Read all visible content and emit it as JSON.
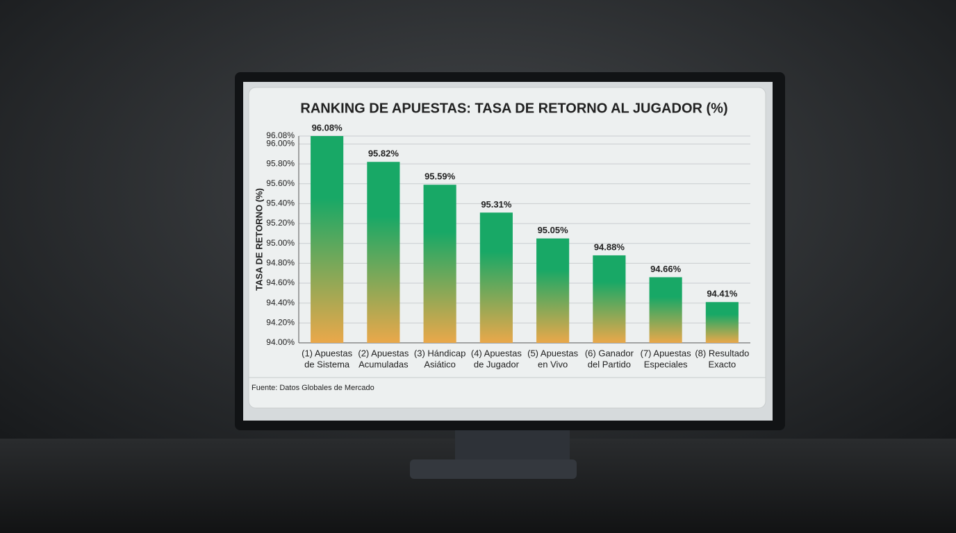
{
  "chart_data": {
    "type": "bar",
    "title": "RANKING DE APUESTAS: TASA DE RETORNO AL JUGADOR (%)",
    "ylabel": "TASA DE RETORNO (%)",
    "source": "Fuente: Datos Globales de Mercado",
    "categories": [
      [
        "(1) Apuestas",
        "de Sistema"
      ],
      [
        "(2) Apuestas",
        "Acumuladas"
      ],
      [
        "(3) Hándicap",
        "Asiático"
      ],
      [
        "(4) Apuestas",
        "de Jugador"
      ],
      [
        "(5) Apuestas",
        "en Vivo"
      ],
      [
        "(6) Ganador",
        "del Partido"
      ],
      [
        "(7) Apuestas",
        "Especiales"
      ],
      [
        "(8) Resultado",
        "Exacto"
      ]
    ],
    "values": [
      96.08,
      95.82,
      95.59,
      95.31,
      95.05,
      94.88,
      94.66,
      94.41
    ],
    "value_labels": [
      "96.08%",
      "95.82%",
      "95.59%",
      "95.31%",
      "95.05%",
      "94.88%",
      "94.66%",
      "94.41%"
    ],
    "colors": [
      "#18a866",
      "#eaa84a"
    ],
    "ylim": [
      94,
      96.08
    ],
    "yticks": [
      {
        "value": 94,
        "label": "94.00%"
      },
      {
        "value": 94.2,
        "label": "94.20%"
      },
      {
        "value": 94.4,
        "label": "94.40%"
      },
      {
        "value": 94.6,
        "label": "94.60%"
      },
      {
        "value": 94.8,
        "label": "94.80%"
      },
      {
        "value": 95,
        "label": "95.00%"
      },
      {
        "value": 95.2,
        "label": "95.20%"
      },
      {
        "value": 95.4,
        "label": "95.40%"
      },
      {
        "value": 95.6,
        "label": "95.60%"
      },
      {
        "value": 95.8,
        "label": "95.80%"
      },
      {
        "value": 96,
        "label": "96.00%"
      },
      {
        "value": 96.08,
        "label": "96.08%"
      }
    ],
    "grid": true
  }
}
